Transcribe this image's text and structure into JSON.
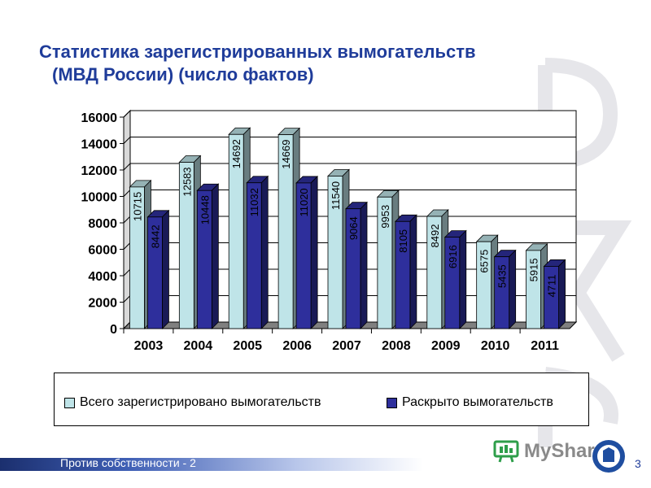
{
  "slide": {
    "title_line1": "Статистика зарегистрированных вымогательств",
    "title_line2": "(МВД России) (число фактов)",
    "footer": "Против собственности - 2",
    "page_number": "3",
    "logo_text": "MyShared"
  },
  "chart_data": {
    "type": "bar",
    "categories": [
      "2003",
      "2004",
      "2005",
      "2006",
      "2007",
      "2008",
      "2009",
      "2010",
      "2011"
    ],
    "series": [
      {
        "name": "Всего зарегистрировано вымогательств",
        "values": [
          10715,
          12583,
          14692,
          14669,
          11540,
          9953,
          8492,
          6575,
          5915
        ],
        "color": "#bfe4e8"
      },
      {
        "name": "Раскрыто вымогательств",
        "values": [
          8442,
          10448,
          11032,
          11020,
          9064,
          8105,
          6916,
          5435,
          4711
        ],
        "color": "#2e2f9c"
      }
    ],
    "ylim": [
      0,
      16000
    ],
    "yticks": [
      "0",
      "2000",
      "4000",
      "6000",
      "8000",
      "10000",
      "12000",
      "14000",
      "16000"
    ],
    "grid": true,
    "legend_position": "bottom"
  },
  "colors": {
    "title": "#1f3c9a",
    "plot_background": "#ffffff",
    "floor": "#808080"
  },
  "icons": [
    "myshared-logo-icon",
    "university-emblem-icon"
  ]
}
